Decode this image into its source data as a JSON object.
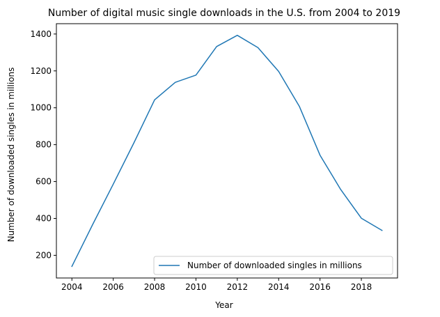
{
  "chart_data": {
    "type": "line",
    "title": "Number of digital music single downloads in the U.S. from 2004 to 2019",
    "xlabel": "Year",
    "ylabel": "Number of downloaded singles in millions",
    "x": [
      2004,
      2005,
      2006,
      2007,
      2008,
      2009,
      2010,
      2011,
      2012,
      2013,
      2014,
      2015,
      2016,
      2017,
      2018,
      2019
    ],
    "series": [
      {
        "name": "Number of downloaded singles in millions",
        "color": "#1f77b4",
        "values": [
          140,
          366,
          586,
          810,
          1043,
          1138,
          1177,
          1332,
          1393,
          1326,
          1197,
          1008,
          743,
          557,
          401,
          335
        ]
      }
    ],
    "xlim": [
      2003.25,
      2019.75
    ],
    "ylim": [
      77,
      1456
    ],
    "xticks": [
      2004,
      2006,
      2008,
      2010,
      2012,
      2014,
      2016,
      2018
    ],
    "yticks": [
      200,
      400,
      600,
      800,
      1000,
      1200,
      1400
    ],
    "grid": false,
    "legend_position": "lower right"
  }
}
